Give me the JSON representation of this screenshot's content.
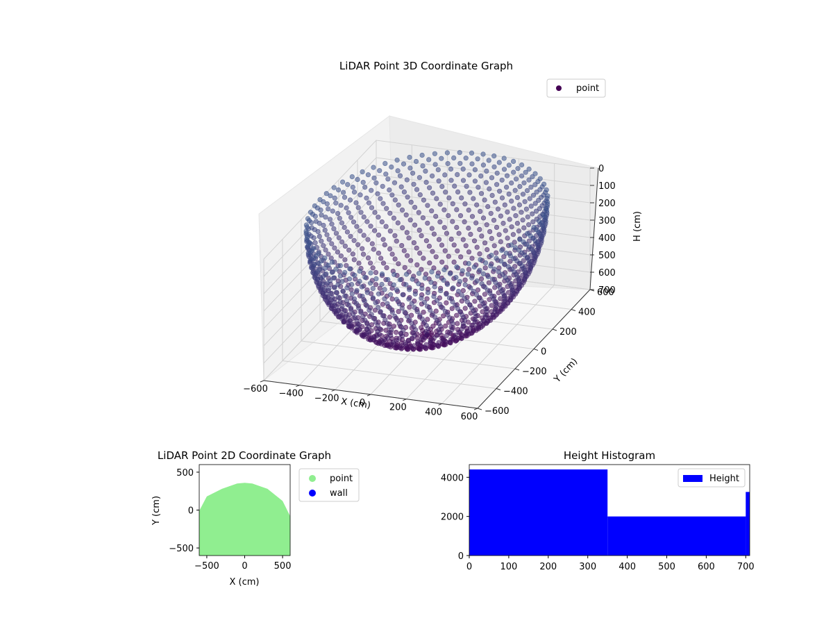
{
  "colors": {
    "point3d_near": "#440154",
    "point3d_far": "#3b528b",
    "point2d": "#90ee90",
    "wall": "#0000ff",
    "histogram": "#0000ff",
    "pane": "#f2f2f2",
    "grid": "#d0d0d0"
  },
  "chart_data": [
    {
      "type": "scatter",
      "projection": "3d",
      "title": "LiDAR Point 3D Coordinate Graph",
      "xlabel": "X (cm)",
      "ylabel": "Y (cm)",
      "zlabel": "H (cm)",
      "xlim": [
        -600,
        600
      ],
      "ylim": [
        -600,
        600
      ],
      "zlim": [
        0,
        700
      ],
      "z_inverted": true,
      "x_ticks": [
        "-600",
        "-400",
        "-200",
        "0",
        "200",
        "400",
        "600"
      ],
      "y_ticks": [
        "-600",
        "-400",
        "-200",
        "0",
        "200",
        "400",
        "600"
      ],
      "z_ticks": [
        "0",
        "100",
        "200",
        "300",
        "400",
        "500",
        "600",
        "700"
      ],
      "series": [
        {
          "name": "point",
          "shape": "hemisphere",
          "center": [
            0,
            0,
            0
          ],
          "radius_xy": 600,
          "max_height": 700,
          "color": "#440154"
        }
      ],
      "legend": [
        "point"
      ],
      "legend_position": "top-right",
      "grid": true
    },
    {
      "type": "scatter",
      "title": "LiDAR Point 2D Coordinate Graph",
      "xlabel": "X (cm)",
      "ylabel": "Y (cm)",
      "xlim": [
        -600,
        600
      ],
      "ylim": [
        -600,
        600
      ],
      "x_ticks": [
        "−500",
        "0",
        "500"
      ],
      "y_ticks": [
        "−500",
        "0",
        "500"
      ],
      "series": [
        {
          "name": "point",
          "color": "#90ee90",
          "region_top_y": [
            [
              -600,
              -10
            ],
            [
              -500,
              180
            ],
            [
              -300,
              280
            ],
            [
              -100,
              350
            ],
            [
              0,
              360
            ],
            [
              100,
              350
            ],
            [
              300,
              280
            ],
            [
              500,
              120
            ],
            [
              600,
              -80
            ]
          ]
        },
        {
          "name": "wall",
          "color": "#0000ff",
          "points": []
        }
      ],
      "legend": [
        "point",
        "wall"
      ],
      "legend_position": "outside-right"
    },
    {
      "type": "bar",
      "subtype": "histogram",
      "title": "Height Histogram",
      "xlabel": "",
      "ylabel": "",
      "xlim": [
        0,
        710
      ],
      "ylim": [
        0,
        4650
      ],
      "x_ticks": [
        "0",
        "100",
        "200",
        "300",
        "400",
        "500",
        "600",
        "700"
      ],
      "y_ticks": [
        "0",
        "2000",
        "4000"
      ],
      "bins": [
        {
          "x0": 0,
          "x1": 350,
          "count": 4400
        },
        {
          "x0": 350,
          "x1": 700,
          "count": 2000
        },
        {
          "x0": 700,
          "x1": 710,
          "count": 3250
        }
      ],
      "series": [
        {
          "name": "Height",
          "color": "#0000ff"
        }
      ],
      "legend": [
        "Height"
      ],
      "legend_position": "top-right"
    }
  ]
}
